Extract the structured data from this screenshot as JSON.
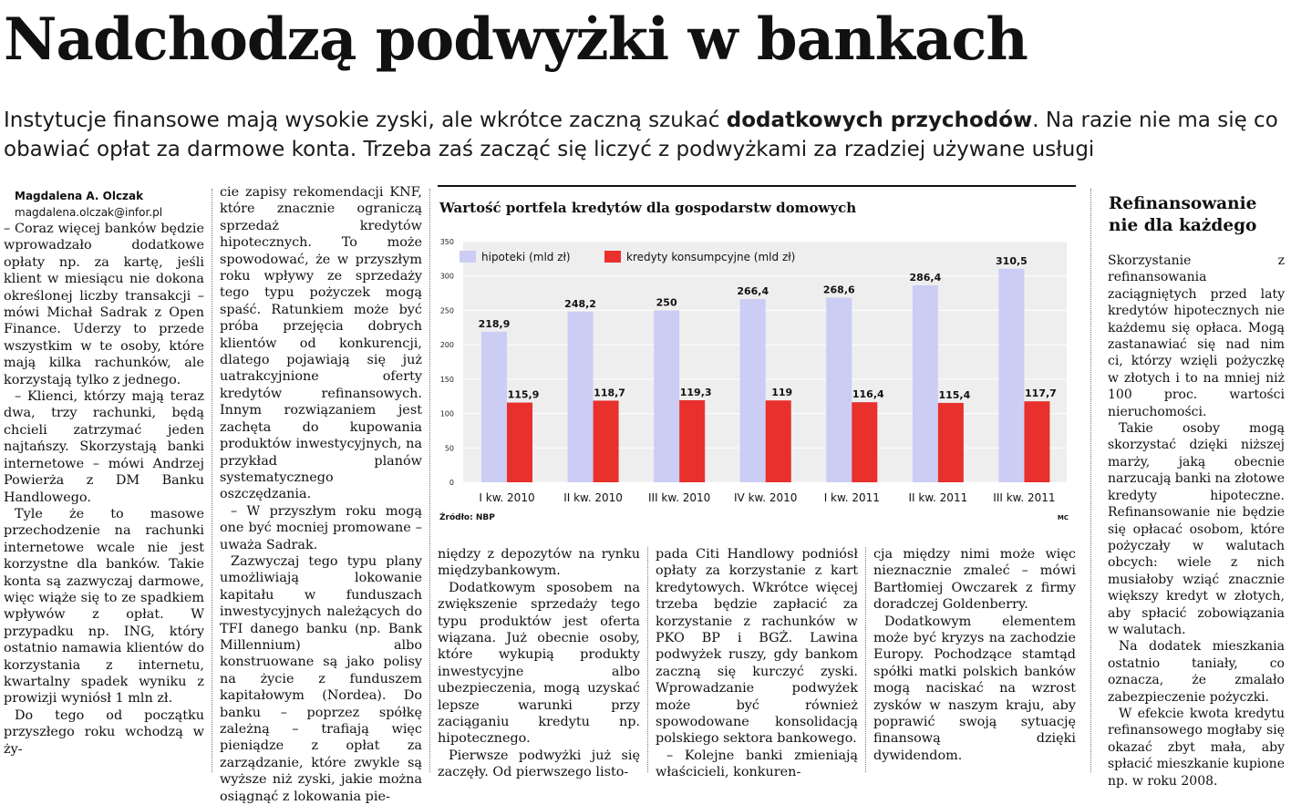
{
  "headline": "Nadchodzą podwyżki w bankach",
  "lead": {
    "before": "Instytucje finansowe mają wysokie zyski, ale wkrótce zaczną szukać ",
    "bold": "dodatkowych przychodów",
    "after": ". Na razie nie ma się co obawiać opłat za darmowe konta. Trzeba zaś zacząć się liczyć z podwyżkami za rzadziej używane usługi"
  },
  "author": {
    "name": "Magdalena A. Olczak",
    "email": "magdalena.olczak@infor.pl"
  },
  "columns": {
    "c1": [
      "– Coraz więcej banków będzie wprowadzało dodatkowe opłaty np. za kartę, jeśli klient w miesiącu nie dokona określonej liczby transakcji – mówi Michał Sadrak z Open Finance. Uderzy to przede wszystkim w te osoby, które mają kilka rachunków, ale korzystają tylko z jednego.",
      "– Klienci, którzy mają teraz dwa, trzy rachunki, będą chcieli zatrzymać jeden najtańszy. Skorzystają banki internetowe – mówi Andrzej Powierża z DM Banku Handlowego.",
      "Tyle że to masowe przechodzenie na rachunki internetowe wcale nie jest korzystne dla banków. Takie konta są zazwyczaj darmowe, więc wiąże się to ze spadkiem wpływów z opłat. W przypadku np. ING, który ostatnio namawia klientów do korzystania z internetu, kwartalny spadek wyniku z prowizji wyniósł 1 mln zł.",
      "Do tego od początku przyszłego roku wchodzą w ży-"
    ],
    "c2": [
      "cie zapisy rekomendacji KNF, które znacznie ograniczą sprzedaż kredytów hipotecznych. To może spowodować, że w przyszłym roku wpływy ze sprzedaży tego typu pożyczek mogą spaść. Ratunkiem może być próba przejęcia dobrych klientów od konkurencji, dlatego pojawiają się już uatrakcyjnione oferty kredytów refinansowych. Innym rozwiązaniem jest zachęta do kupowania produktów inwestycyjnych, na przykład planów systematycznego oszczędzania.",
      "– W przyszłym roku mogą one być mocniej promowane – uważa Sadrak.",
      "Zazwyczaj tego typu plany umożliwiają lokowanie kapitału w funduszach inwestycyjnych należących do TFI danego banku (np. Bank Millennium) albo konstruowane są jako polisy na życie z funduszem kapitałowym (Nordea). Do banku – poprzez spółkę zależną – trafiają więc pieniądze z opłat za zarządzanie, które zwykle są wyższe niż zyski, jakie można osiągnąć z lokowania pie-"
    ],
    "c3": [
      "niędzy z depozytów na rynku międzybankowym.",
      "Dodatkowym sposobem na zwiększenie sprzedaży tego typu produktów jest oferta wiązana. Już obecnie osoby, które wykupią produkty inwestycyjne albo ubezpieczenia, mogą uzyskać lepsze warunki przy zaciąganiu kredytu np. hipotecznego.",
      "Pierwsze podwyżki już się zaczęły. Od pierwszego listo-"
    ],
    "c4": [
      "pada Citi Handlowy podniósł opłaty za korzystanie z kart kredytowych. Wkrótce więcej trzeba będzie zapłacić za korzystanie z rachunków w PKO BP i BGŻ. Lawina podwyżek ruszy, gdy bankom zaczną się kurczyć zyski. Wprowadzanie podwyżek może być również spowodowane konsolidacją polskiego sektora bankowego.",
      "– Kolejne banki zmieniają właścicieli, konkuren-"
    ],
    "c5": [
      "cja między nimi może więc nieznacznie zmaleć – mówi Bartłomiej Owczarek z firmy doradczej Goldenberry.",
      "Dodatkowym elementem może być kryzys na zachodzie Europy. Pochodzące stamtąd spółki matki polskich banków mogą naciskać na wzrost zysków w naszym kraju, aby poprawić swoją sytuację finansową dzięki dywidendom."
    ]
  },
  "sidebar": {
    "title": "Refinansowanie nie dla każdego",
    "paragraphs": [
      "Skorzystanie z refinansowania zaciągniętych przed laty kredytów hipotecznych nie każdemu się opłaca. Mogą zastanawiać się nad nim ci, którzy wzięli pożyczkę w złotych i to na mniej niż 100 proc. wartości nieruchomości.",
      "Takie osoby mogą skorzystać dzięki niższej marży, jaką obecnie narzucają banki na złotowe kredyty hipoteczne. Refinansowanie nie będzie się opłacać osobom, które pożyczały w walutach obcych: wiele z nich musiałoby wziąć znacznie większy kredyt w złotych, aby spłacić zobowiązania w walutach.",
      "Na dodatek mieszkania ostatnio taniały, co oznacza, że zmalało zabezpieczenie pożyczki.",
      "W efekcie kwota kredytu refinansowego mogłaby się okazać zbyt mała, aby spłacić mieszkanie kupione np. w roku 2008."
    ]
  },
  "chart_data": {
    "type": "bar",
    "title": "Wartość portfela kredytów dla gospodarstw domowych",
    "categories": [
      "I kw. 2010",
      "II kw. 2010",
      "III kw. 2010",
      "IV kw. 2010",
      "I kw. 2011",
      "II kw. 2011",
      "III kw. 2011"
    ],
    "series": [
      {
        "name": "hipoteki (mld zł)",
        "color": "#cccdf4",
        "values": [
          218.9,
          248.2,
          250,
          266.4,
          268.6,
          286.4,
          310.5
        ]
      },
      {
        "name": "kredyty konsumpcyjne (mld zł)",
        "color": "#e8302c",
        "values": [
          115.9,
          118.7,
          119.3,
          119,
          116.4,
          115.4,
          117.7
        ]
      }
    ],
    "value_labels": [
      [
        "218,9",
        "248,2",
        "250",
        "266,4",
        "268,6",
        "286,4",
        "310,5"
      ],
      [
        "115,9",
        "118,7",
        "119,3",
        "119",
        "116,4",
        "115,4",
        "117,7"
      ]
    ],
    "yticks": [
      0,
      50,
      100,
      150,
      200,
      250,
      300,
      350
    ],
    "ylim": [
      0,
      350
    ],
    "grid": true,
    "legend": "top-left",
    "source": "Źródło: NBP",
    "credit": "MC"
  }
}
